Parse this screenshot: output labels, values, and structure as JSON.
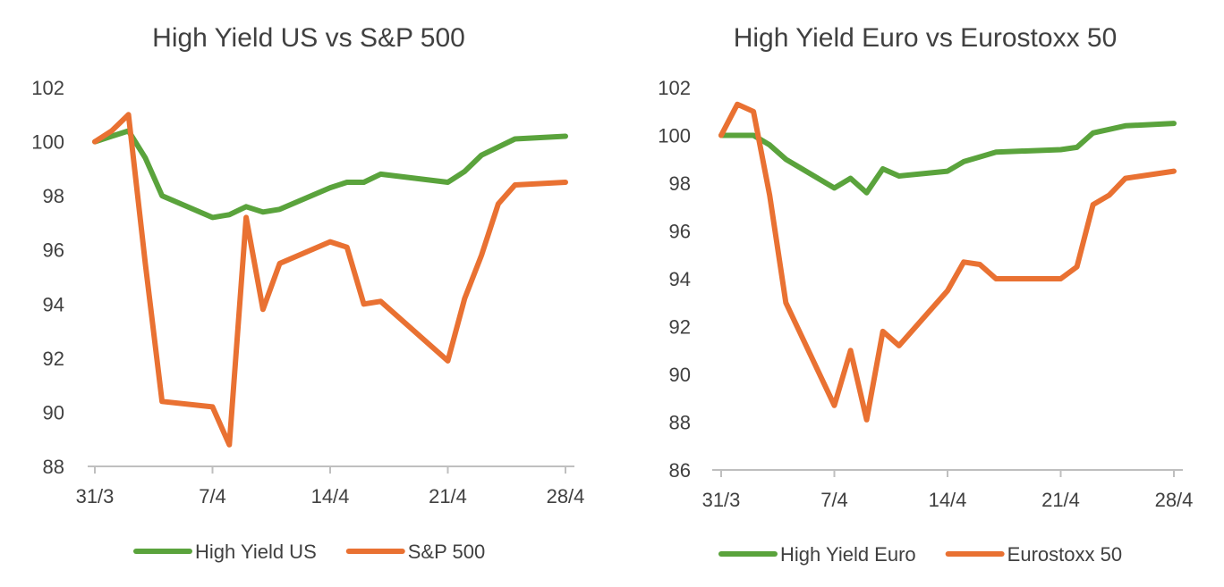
{
  "chart_data": [
    {
      "type": "line",
      "title": "High Yield US vs S&P 500",
      "xlabel": "",
      "ylabel": "",
      "ylim": [
        88,
        102
      ],
      "yticks": [
        88,
        90,
        92,
        94,
        96,
        98,
        100,
        102
      ],
      "x_tick_labels": [
        "31/3",
        "7/4",
        "14/4",
        "21/4",
        "28/4"
      ],
      "x_tick_days": [
        0,
        7,
        14,
        21,
        28
      ],
      "xlim": [
        0,
        28
      ],
      "grid": false,
      "legend_position": "bottom",
      "series": [
        {
          "name": "High Yield US",
          "color": "#5aa33c",
          "x": [
            0,
            1,
            2,
            3,
            4,
            7,
            8,
            9,
            10,
            11,
            14,
            15,
            16,
            17,
            21,
            22,
            23,
            25,
            28
          ],
          "y": [
            100.0,
            100.2,
            100.4,
            99.4,
            98.0,
            97.2,
            97.3,
            97.6,
            97.4,
            97.5,
            98.3,
            98.5,
            98.5,
            98.8,
            98.5,
            98.9,
            99.5,
            100.1,
            100.2
          ]
        },
        {
          "name": "S&P 500",
          "color": "#e97132",
          "x": [
            0,
            1,
            2,
            3,
            4,
            7,
            8,
            9,
            10,
            11,
            14,
            15,
            16,
            17,
            21,
            22,
            23,
            24,
            25,
            28
          ],
          "y": [
            100.0,
            100.4,
            101.0,
            95.5,
            90.4,
            90.2,
            88.8,
            97.2,
            93.8,
            95.5,
            96.3,
            96.1,
            94.0,
            94.1,
            91.9,
            94.2,
            95.8,
            97.7,
            98.4,
            98.5
          ]
        }
      ]
    },
    {
      "type": "line",
      "title": "High Yield Euro vs Eurostoxx 50",
      "xlabel": "",
      "ylabel": "",
      "ylim": [
        86,
        102
      ],
      "yticks": [
        86,
        88,
        90,
        92,
        94,
        96,
        98,
        100,
        102
      ],
      "x_tick_labels": [
        "31/3",
        "7/4",
        "14/4",
        "21/4",
        "28/4"
      ],
      "x_tick_days": [
        0,
        7,
        14,
        21,
        28
      ],
      "xlim": [
        0,
        28
      ],
      "grid": false,
      "legend_position": "bottom",
      "series": [
        {
          "name": "High Yield Euro",
          "color": "#5aa33c",
          "x": [
            0,
            1,
            2,
            3,
            4,
            7,
            8,
            9,
            10,
            11,
            14,
            15,
            16,
            17,
            21,
            22,
            23,
            25,
            28
          ],
          "y": [
            100.0,
            100.0,
            100.0,
            99.6,
            99.0,
            97.8,
            98.2,
            97.6,
            98.6,
            98.3,
            98.5,
            98.9,
            99.1,
            99.3,
            99.4,
            99.5,
            100.1,
            100.4,
            100.5
          ]
        },
        {
          "name": "Eurostoxx 50",
          "color": "#e97132",
          "x": [
            0,
            1,
            2,
            3,
            4,
            7,
            8,
            9,
            10,
            11,
            14,
            15,
            16,
            17,
            21,
            22,
            23,
            24,
            25,
            28
          ],
          "y": [
            100.0,
            101.3,
            101.0,
            97.5,
            93.0,
            88.7,
            91.0,
            88.1,
            91.8,
            91.2,
            93.5,
            94.7,
            94.6,
            94.0,
            94.0,
            94.5,
            97.1,
            97.5,
            98.2,
            98.5
          ]
        }
      ]
    }
  ]
}
